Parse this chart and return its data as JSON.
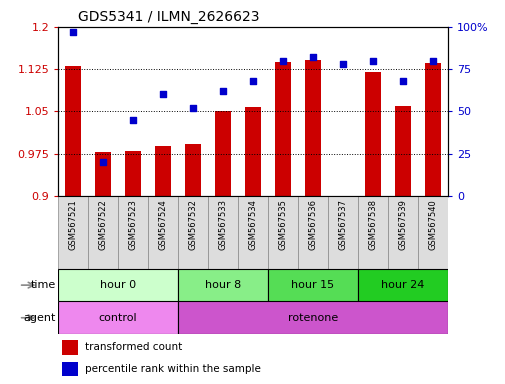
{
  "title": "GDS5341 / ILMN_2626623",
  "samples": [
    "GSM567521",
    "GSM567522",
    "GSM567523",
    "GSM567524",
    "GSM567532",
    "GSM567533",
    "GSM567534",
    "GSM567535",
    "GSM567536",
    "GSM567537",
    "GSM567538",
    "GSM567539",
    "GSM567540"
  ],
  "bar_values": [
    1.13,
    0.977,
    0.98,
    0.988,
    0.992,
    1.05,
    1.058,
    1.138,
    1.142,
    0.9,
    1.12,
    1.06,
    1.135
  ],
  "scatter_values": [
    97,
    20,
    45,
    60,
    52,
    62,
    68,
    80,
    82,
    78,
    80,
    68,
    80
  ],
  "ylim_left": [
    0.9,
    1.2
  ],
  "ylim_right": [
    0,
    100
  ],
  "yticks_left": [
    0.9,
    0.975,
    1.05,
    1.125,
    1.2
  ],
  "yticks_right": [
    0,
    25,
    50,
    75,
    100
  ],
  "ytick_labels_left": [
    "0.9",
    "0.975",
    "1.05",
    "1.125",
    "1.2"
  ],
  "ytick_labels_right": [
    "0",
    "25",
    "50",
    "75",
    "100%"
  ],
  "bar_color": "#cc0000",
  "scatter_color": "#0000cc",
  "bar_bottom": 0.9,
  "time_groups": [
    {
      "label": "hour 0",
      "start": 0,
      "end": 4,
      "color": "#ccffcc"
    },
    {
      "label": "hour 8",
      "start": 4,
      "end": 7,
      "color": "#88ee88"
    },
    {
      "label": "hour 15",
      "start": 7,
      "end": 10,
      "color": "#55dd55"
    },
    {
      "label": "hour 24",
      "start": 10,
      "end": 13,
      "color": "#22cc22"
    }
  ],
  "agent_groups": [
    {
      "label": "control",
      "start": 0,
      "end": 4,
      "color": "#ee88ee"
    },
    {
      "label": "rotenone",
      "start": 4,
      "end": 13,
      "color": "#cc55cc"
    }
  ],
  "legend_bar_label": "transformed count",
  "legend_scatter_label": "percentile rank within the sample",
  "time_label": "time",
  "agent_label": "agent",
  "sample_box_color": "#cccccc",
  "sample_box_edge": "#888888"
}
